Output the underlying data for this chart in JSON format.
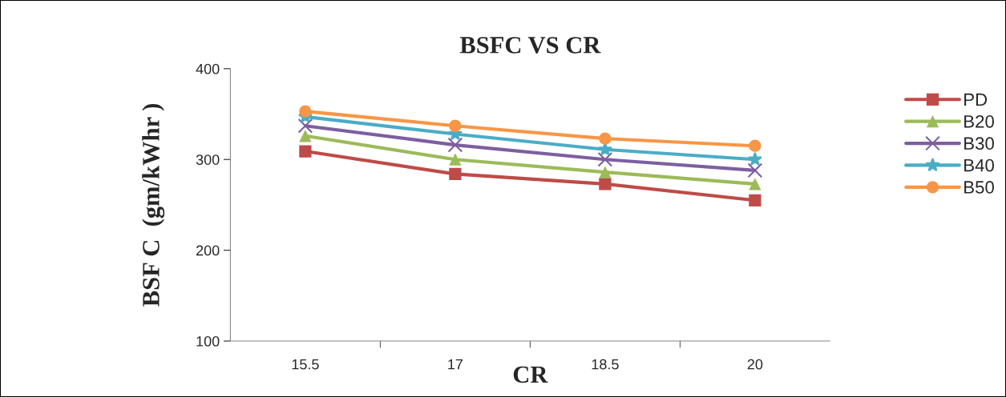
{
  "chart_data": {
    "type": "line",
    "title": "BSFC VS CR",
    "xlabel": "CR",
    "ylabel": "BSF C  (gm/kWhr )",
    "categories": [
      "15.5",
      "17",
      "18.5",
      "20"
    ],
    "ylim": [
      100,
      400
    ],
    "yticks": [
      100,
      200,
      300,
      400
    ],
    "grid": false,
    "legend": "right",
    "series": [
      {
        "name": "PD",
        "color": "#be4b48",
        "marker": "square",
        "values": [
          309,
          284,
          273,
          255
        ]
      },
      {
        "name": "B20",
        "color": "#9bbb59",
        "marker": "triangle",
        "values": [
          326,
          300,
          286,
          273
        ]
      },
      {
        "name": "B30",
        "color": "#7d5fa0",
        "marker": "cross",
        "values": [
          337,
          316,
          300,
          288
        ]
      },
      {
        "name": "B40",
        "color": "#4bacc6",
        "marker": "star",
        "values": [
          347,
          328,
          311,
          300
        ]
      },
      {
        "name": "B50",
        "color": "#f79646",
        "marker": "circle",
        "values": [
          353,
          337,
          323,
          315
        ]
      }
    ]
  }
}
